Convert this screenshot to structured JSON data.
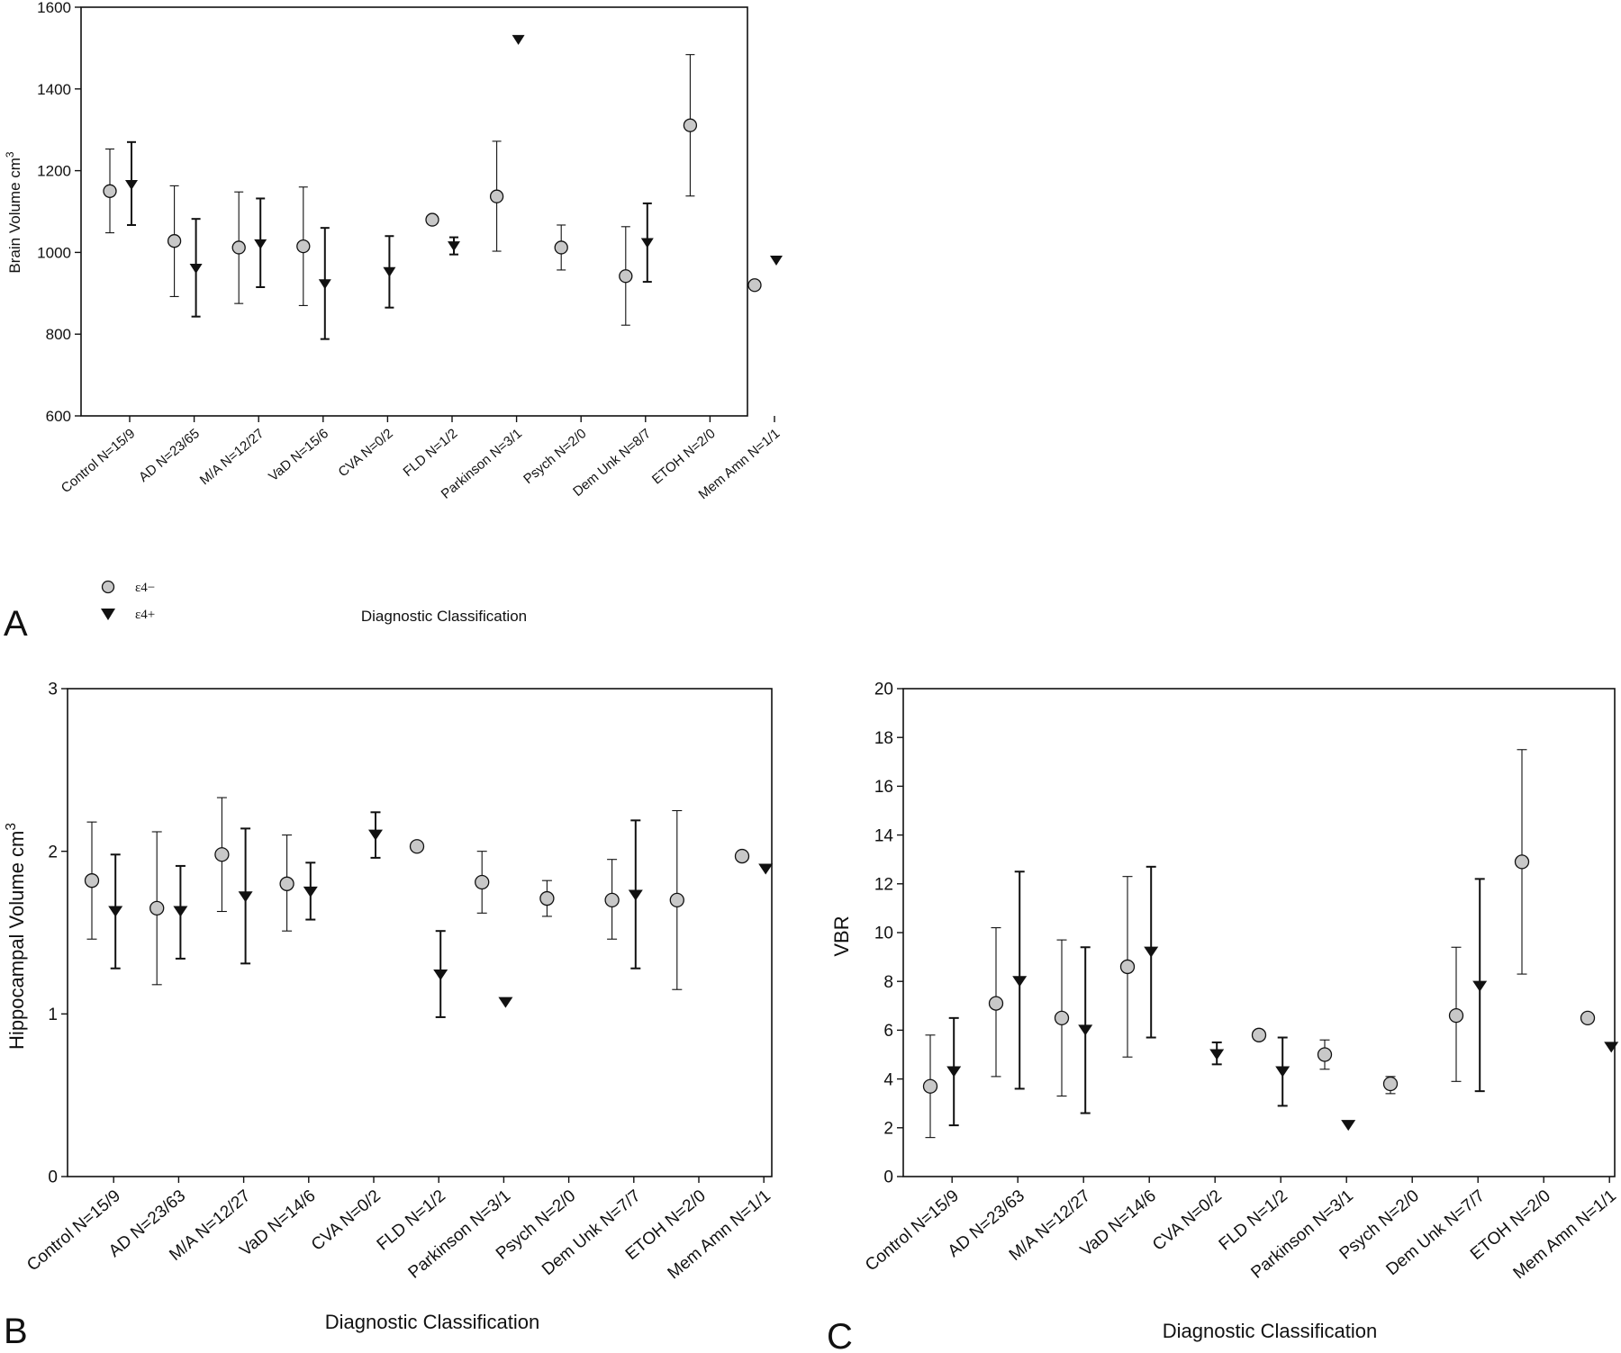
{
  "legend": {
    "items": [
      {
        "marker": "circle",
        "label": "ε4−"
      },
      {
        "marker": "triangle",
        "label": "ε4+"
      }
    ]
  },
  "colors": {
    "circle_fill": "#c8c8c8",
    "stroke": "#111111"
  },
  "chart_data": [
    {
      "type": "scatter",
      "panel_label": "A",
      "title": "",
      "xlabel": "Diagnostic Classification",
      "ylabel": "Brain Volume cm",
      "ylabel_sup": "3",
      "ylim": [
        600,
        1600
      ],
      "yticks": [
        600,
        800,
        1000,
        1200,
        1400,
        1600
      ],
      "grid": false,
      "legend_position": "below-left",
      "categories": [
        "Control N=15/9",
        "AD N=23/65",
        "M/A N=12/27",
        "VaD N=15/6",
        "CVA N=0/2",
        "FLD N=1/2",
        "Parkinson N=3/1",
        "Psych N=2/0",
        "Dem Unk N=8/7",
        "ETOH N=2/0",
        "Mem Amn N=1/1"
      ],
      "series": [
        {
          "name": "ε4−",
          "marker": "circle",
          "points": [
            {
              "c": 0,
              "y": 1150,
              "lo": 1048,
              "hi": 1253
            },
            {
              "c": 1,
              "y": 1028,
              "lo": 892,
              "hi": 1163
            },
            {
              "c": 2,
              "y": 1012,
              "lo": 875,
              "hi": 1148
            },
            {
              "c": 3,
              "y": 1015,
              "lo": 870,
              "hi": 1160
            },
            {
              "c": 5,
              "y": 1080,
              "lo": null,
              "hi": null
            },
            {
              "c": 6,
              "y": 1137,
              "lo": 1003,
              "hi": 1272
            },
            {
              "c": 7,
              "y": 1012,
              "lo": 957,
              "hi": 1067
            },
            {
              "c": 8,
              "y": 942,
              "lo": 822,
              "hi": 1063
            },
            {
              "c": 9,
              "y": 1311,
              "lo": 1138,
              "hi": 1484
            },
            {
              "c": 10,
              "y": 920,
              "lo": null,
              "hi": null
            }
          ]
        },
        {
          "name": "ε4+",
          "marker": "triangle",
          "points": [
            {
              "c": 0,
              "y": 1165,
              "lo": 1067,
              "hi": 1270
            },
            {
              "c": 1,
              "y": 960,
              "lo": 843,
              "hi": 1082
            },
            {
              "c": 2,
              "y": 1020,
              "lo": 915,
              "hi": 1132
            },
            {
              "c": 3,
              "y": 922,
              "lo": 788,
              "hi": 1060
            },
            {
              "c": 4,
              "y": 952,
              "lo": 865,
              "hi": 1040
            },
            {
              "c": 5,
              "y": 1015,
              "lo": 995,
              "hi": 1037
            },
            {
              "c": 6,
              "y": 1520,
              "lo": null,
              "hi": null
            },
            {
              "c": 8,
              "y": 1023,
              "lo": 928,
              "hi": 1120
            },
            {
              "c": 10,
              "y": 980,
              "lo": null,
              "hi": null
            }
          ]
        }
      ]
    },
    {
      "type": "scatter",
      "panel_label": "B",
      "title": "",
      "xlabel": "Diagnostic Classification",
      "ylabel": "Hippocampal Volume cm",
      "ylabel_sup": "3",
      "ylim": [
        0,
        3
      ],
      "yticks": [
        0,
        1,
        2,
        3
      ],
      "grid": false,
      "categories": [
        "Control N=15/9",
        "AD N=23/63",
        "M/A N=12/27",
        "VaD N=14/6",
        "CVA N=0/2",
        "FLD N=1/2",
        "Parkinson N=3/1",
        "Psych N=2/0",
        "Dem Unk N=7/7",
        "ETOH N=2/0",
        "Mem Amn N=1/1"
      ],
      "series": [
        {
          "name": "ε4−",
          "marker": "circle",
          "points": [
            {
              "c": 0,
              "y": 1.82,
              "lo": 1.46,
              "hi": 2.18
            },
            {
              "c": 1,
              "y": 1.65,
              "lo": 1.18,
              "hi": 2.12
            },
            {
              "c": 2,
              "y": 1.98,
              "lo": 1.63,
              "hi": 2.33
            },
            {
              "c": 3,
              "y": 1.8,
              "lo": 1.51,
              "hi": 2.1
            },
            {
              "c": 5,
              "y": 2.03,
              "lo": null,
              "hi": null
            },
            {
              "c": 6,
              "y": 1.81,
              "lo": 1.62,
              "hi": 2.0
            },
            {
              "c": 7,
              "y": 1.71,
              "lo": 1.6,
              "hi": 1.82
            },
            {
              "c": 8,
              "y": 1.7,
              "lo": 1.46,
              "hi": 1.95
            },
            {
              "c": 9,
              "y": 1.7,
              "lo": 1.15,
              "hi": 2.25
            },
            {
              "c": 10,
              "y": 1.97,
              "lo": null,
              "hi": null
            }
          ]
        },
        {
          "name": "ε4+",
          "marker": "triangle",
          "points": [
            {
              "c": 0,
              "y": 1.63,
              "lo": 1.28,
              "hi": 1.98
            },
            {
              "c": 1,
              "y": 1.63,
              "lo": 1.34,
              "hi": 1.91
            },
            {
              "c": 2,
              "y": 1.72,
              "lo": 1.31,
              "hi": 2.14
            },
            {
              "c": 3,
              "y": 1.75,
              "lo": 1.58,
              "hi": 1.93
            },
            {
              "c": 4,
              "y": 2.1,
              "lo": 1.96,
              "hi": 2.24
            },
            {
              "c": 5,
              "y": 1.24,
              "lo": 0.98,
              "hi": 1.51
            },
            {
              "c": 6,
              "y": 1.07,
              "lo": null,
              "hi": null
            },
            {
              "c": 8,
              "y": 1.73,
              "lo": 1.28,
              "hi": 2.19
            },
            {
              "c": 10,
              "y": 1.89,
              "lo": null,
              "hi": null
            }
          ]
        }
      ]
    },
    {
      "type": "scatter",
      "panel_label": "C",
      "title": "",
      "xlabel": "Diagnostic Classification",
      "ylabel": "VBR",
      "ylabel_sup": "",
      "ylim": [
        0,
        20
      ],
      "yticks": [
        0,
        2,
        4,
        6,
        8,
        10,
        12,
        14,
        16,
        18,
        20
      ],
      "grid": false,
      "categories": [
        "Control N=15/9",
        "AD N=23/63",
        "M/A N=12/27",
        "VaD N=14/6",
        "CVA N=0/2",
        "FLD N=1/2",
        "Parkinson N=3/1",
        "Psych N=2/0",
        "Dem Unk N=7/7",
        "ETOH N=2/0",
        "Mem Amn N=1/1"
      ],
      "series": [
        {
          "name": "ε4−",
          "marker": "circle",
          "points": [
            {
              "c": 0,
              "y": 3.7,
              "lo": 1.6,
              "hi": 5.8
            },
            {
              "c": 1,
              "y": 7.1,
              "lo": 4.1,
              "hi": 10.2
            },
            {
              "c": 2,
              "y": 6.5,
              "lo": 3.3,
              "hi": 9.7
            },
            {
              "c": 3,
              "y": 8.6,
              "lo": 4.9,
              "hi": 12.3
            },
            {
              "c": 5,
              "y": 5.8,
              "lo": null,
              "hi": null
            },
            {
              "c": 6,
              "y": 5.0,
              "lo": 4.4,
              "hi": 5.6
            },
            {
              "c": 7,
              "y": 3.8,
              "lo": 3.4,
              "hi": 4.1
            },
            {
              "c": 8,
              "y": 6.6,
              "lo": 3.9,
              "hi": 9.4
            },
            {
              "c": 9,
              "y": 12.9,
              "lo": 8.3,
              "hi": 17.5
            },
            {
              "c": 10,
              "y": 6.5,
              "lo": null,
              "hi": null
            }
          ]
        },
        {
          "name": "ε4+",
          "marker": "triangle",
          "points": [
            {
              "c": 0,
              "y": 4.3,
              "lo": 2.1,
              "hi": 6.5
            },
            {
              "c": 1,
              "y": 8.0,
              "lo": 3.6,
              "hi": 12.5
            },
            {
              "c": 2,
              "y": 6.0,
              "lo": 2.6,
              "hi": 9.4
            },
            {
              "c": 3,
              "y": 9.2,
              "lo": 5.7,
              "hi": 12.7
            },
            {
              "c": 4,
              "y": 5.0,
              "lo": 4.6,
              "hi": 5.5
            },
            {
              "c": 5,
              "y": 4.3,
              "lo": 2.9,
              "hi": 5.7
            },
            {
              "c": 6,
              "y": 2.1,
              "lo": null,
              "hi": null
            },
            {
              "c": 8,
              "y": 7.8,
              "lo": 3.5,
              "hi": 12.2
            },
            {
              "c": 10,
              "y": 5.3,
              "lo": null,
              "hi": null
            }
          ]
        }
      ]
    }
  ]
}
